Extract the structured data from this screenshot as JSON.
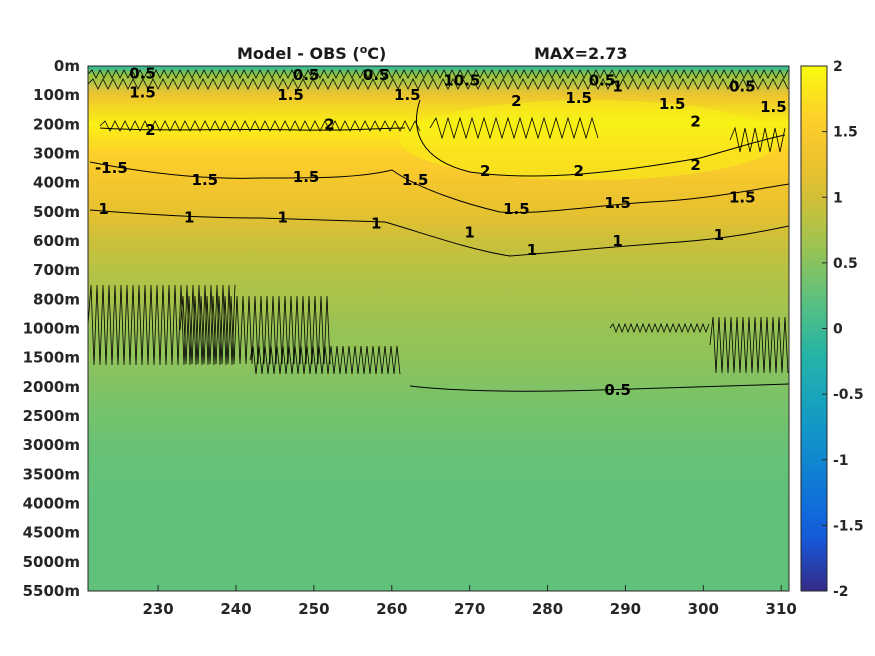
{
  "chart_data": {
    "type": "heatmap",
    "title": "Model - OBS (",
    "title_unit_sup": "o",
    "title_unit": "C)",
    "annotation": "MAX=2.73",
    "x": {
      "ticks": [
        230,
        240,
        250,
        260,
        270,
        280,
        290,
        300,
        310
      ],
      "range": [
        221,
        311
      ]
    },
    "y": {
      "tick_labels": [
        "0m",
        "100m",
        "200m",
        "300m",
        "400m",
        "500m",
        "600m",
        "700m",
        "800m",
        "1000m",
        "1500m",
        "2000m",
        "2500m",
        "3000m",
        "3500m",
        "4000m",
        "4500m",
        "5000m",
        "5500m"
      ],
      "scale": "level index (non-uniform depth)"
    },
    "colorbar": {
      "range": [
        -2,
        2
      ],
      "ticks": [
        "2",
        "1.5",
        "1",
        "0.5",
        "0",
        "-0.5",
        "-1",
        "-1.5",
        "-2"
      ],
      "colormap": "parula"
    },
    "field_profile": [
      {
        "depth": "0m",
        "value": 0.4
      },
      {
        "depth": "100m",
        "value": 1.3
      },
      {
        "depth": "200m",
        "value": 1.9
      },
      {
        "depth": "300m",
        "value": 1.6
      },
      {
        "depth": "400m",
        "value": 1.4
      },
      {
        "depth": "500m",
        "value": 1.2
      },
      {
        "depth": "600m",
        "value": 0.95
      },
      {
        "depth": "700m",
        "value": 0.8
      },
      {
        "depth": "800m",
        "value": 0.7
      },
      {
        "depth": "1000m",
        "value": 0.6
      },
      {
        "depth": "1500m",
        "value": 0.55
      },
      {
        "depth": "2000m",
        "value": 0.45
      },
      {
        "depth": "3000m",
        "value": 0.3
      },
      {
        "depth": "4000m",
        "value": 0.25
      },
      {
        "depth": "5500m",
        "value": 0.25
      }
    ],
    "contour_labels": [
      {
        "text": "0.5",
        "x": 228,
        "level": 0.25
      },
      {
        "text": "1.5",
        "x": 228,
        "level": 0.9
      },
      {
        "text": "2",
        "x": 229,
        "level": 2.2
      },
      {
        "text": "0.5",
        "x": 249,
        "level": 0.3
      },
      {
        "text": "1.5",
        "x": 247,
        "level": 1.0
      },
      {
        "text": "2",
        "x": 252,
        "level": 2.0
      },
      {
        "text": "0.5",
        "x": 258,
        "level": 0.3
      },
      {
        "text": "1.5",
        "x": 262,
        "level": 1.0
      },
      {
        "text": "10.5",
        "x": 269,
        "level": 0.5
      },
      {
        "text": "2",
        "x": 276,
        "level": 1.2
      },
      {
        "text": "0.5",
        "x": 287,
        "level": 0.5
      },
      {
        "text": "1.5",
        "x": 284,
        "level": 1.1
      },
      {
        "text": "1",
        "x": 289,
        "level": 0.7
      },
      {
        "text": "1.5",
        "x": 296,
        "level": 1.3
      },
      {
        "text": "2",
        "x": 299,
        "level": 1.9
      },
      {
        "text": "0.5",
        "x": 305,
        "level": 0.7
      },
      {
        "text": "1.5",
        "x": 309,
        "level": 1.4
      },
      {
        "text": "-1.5",
        "x": 224,
        "level": 3.5
      },
      {
        "text": "1.5",
        "x": 236,
        "level": 3.9
      },
      {
        "text": "1.5",
        "x": 249,
        "level": 3.8
      },
      {
        "text": "1.5",
        "x": 263,
        "level": 3.9
      },
      {
        "text": "2",
        "x": 272,
        "level": 3.6
      },
      {
        "text": "1.5",
        "x": 276,
        "level": 4.9
      },
      {
        "text": "2",
        "x": 284,
        "level": 3.6
      },
      {
        "text": "1.5",
        "x": 289,
        "level": 4.7
      },
      {
        "text": "2",
        "x": 299,
        "level": 3.4
      },
      {
        "text": "1.5",
        "x": 305,
        "level": 4.5
      },
      {
        "text": "1",
        "x": 223,
        "level": 4.9
      },
      {
        "text": "1",
        "x": 234,
        "level": 5.2
      },
      {
        "text": "1",
        "x": 246,
        "level": 5.2
      },
      {
        "text": "1",
        "x": 258,
        "level": 5.4
      },
      {
        "text": "1",
        "x": 270,
        "level": 5.7
      },
      {
        "text": "1",
        "x": 278,
        "level": 6.3
      },
      {
        "text": "1",
        "x": 289,
        "level": 6.0
      },
      {
        "text": "1",
        "x": 302,
        "level": 5.8
      },
      {
        "text": "0.5",
        "x": 289,
        "level": 11.1
      }
    ]
  }
}
